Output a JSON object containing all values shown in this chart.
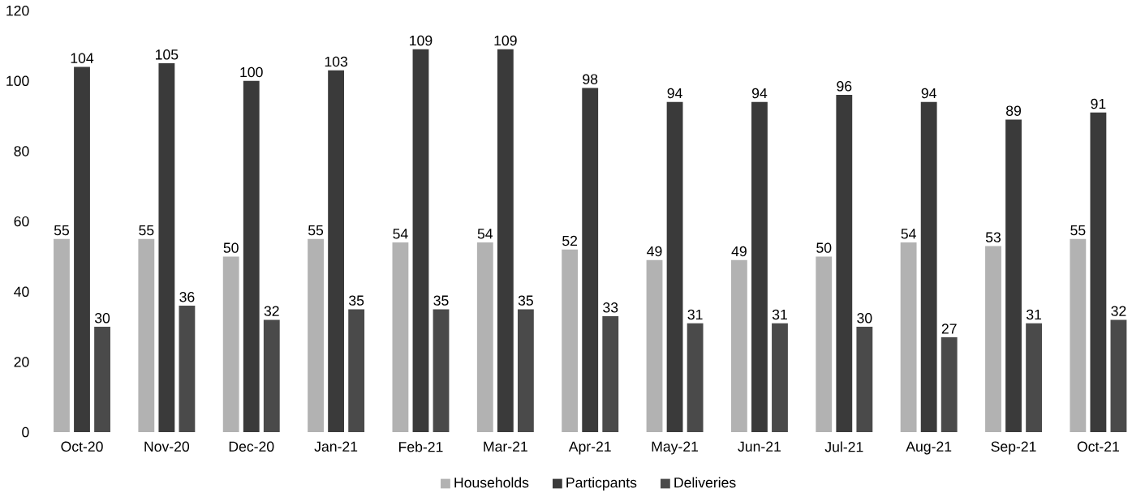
{
  "chart_data": {
    "type": "bar",
    "categories": [
      "Oct-20",
      "Nov-20",
      "Dec-20",
      "Jan-21",
      "Feb-21",
      "Mar-21",
      "Apr-21",
      "May-21",
      "Jun-21",
      "Jul-21",
      "Aug-21",
      "Sep-21",
      "Oct-21"
    ],
    "series": [
      {
        "name": "Households",
        "color": "#b2b2b2",
        "values": [
          55,
          55,
          50,
          55,
          54,
          54,
          52,
          49,
          49,
          50,
          54,
          53,
          55
        ]
      },
      {
        "name": "Particpants",
        "color": "#3a3a3a",
        "values": [
          104,
          105,
          100,
          103,
          109,
          109,
          98,
          94,
          94,
          96,
          94,
          89,
          91
        ]
      },
      {
        "name": "Deliveries",
        "color": "#4a4a4a",
        "values": [
          30,
          36,
          32,
          35,
          35,
          35,
          33,
          31,
          31,
          30,
          27,
          31,
          32
        ]
      }
    ],
    "ylim": [
      0,
      120
    ],
    "yticks": [
      0,
      20,
      40,
      60,
      80,
      100,
      120
    ],
    "data_labels": true,
    "legend": "bottom",
    "grid": false
  }
}
